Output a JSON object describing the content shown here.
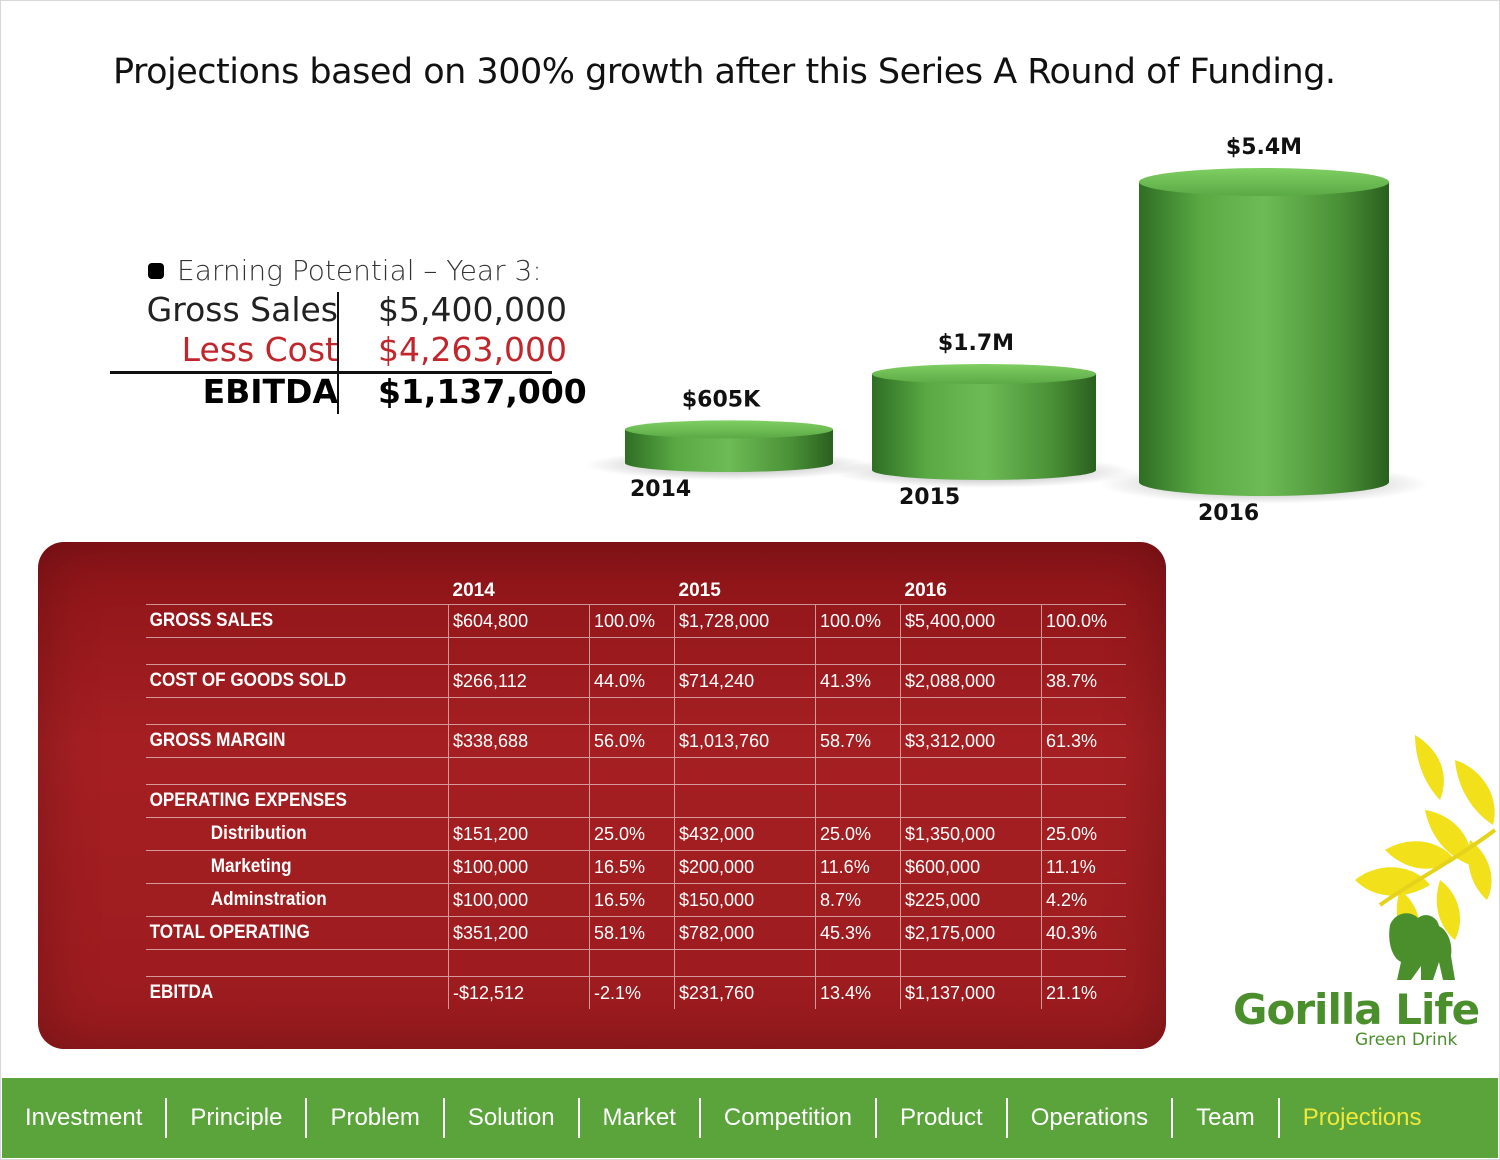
{
  "headline": "Projections based on 300% growth after this Series A Round of Funding.",
  "earning": {
    "heading": "Earning Potential – Year 3:",
    "rows": [
      {
        "label": "Gross Sales",
        "value": "$5,400,000"
      },
      {
        "label": "Less Cost",
        "value": "$4,263,000"
      },
      {
        "label": "EBITDA",
        "value": "$1,137,000"
      }
    ]
  },
  "chart_data": {
    "type": "bar",
    "categories": [
      "2014",
      "2015",
      "2016"
    ],
    "values": [
      0.605,
      1.728,
      5.4
    ],
    "value_labels": [
      "$605K",
      "$1.7M",
      "$5.4M"
    ],
    "title": "",
    "xlabel": "",
    "ylabel": "",
    "ylim": [
      0,
      5.4
    ],
    "grid": false,
    "color": "#4e9a38"
  },
  "table": {
    "years": [
      "2014",
      "2015",
      "2016"
    ],
    "rows": [
      {
        "label": "GROSS SALES",
        "cells": [
          "$604,800",
          "100.0%",
          "$1,728,000",
          "100.0%",
          "$5,400,000",
          "100.0%"
        ]
      },
      {
        "label": "COST OF GOODS SOLD",
        "cells": [
          "$266,112",
          "44.0%",
          "$714,240",
          "41.3%",
          "$2,088,000",
          "38.7%"
        ]
      },
      {
        "label": "GROSS MARGIN",
        "cells": [
          "$338,688",
          "56.0%",
          "$1,013,760",
          "58.7%",
          "$3,312,000",
          "61.3%"
        ]
      },
      {
        "label": "OPERATING EXPENSES",
        "cells": [
          "",
          "",
          "",
          "",
          "",
          ""
        ]
      },
      {
        "label": "Distribution",
        "cells": [
          "$151,200",
          "25.0%",
          "$432,000",
          "25.0%",
          "$1,350,000",
          "25.0%"
        ]
      },
      {
        "label": "Marketing",
        "cells": [
          "$100,000",
          "16.5%",
          "$200,000",
          "11.6%",
          "$600,000",
          "11.1%"
        ]
      },
      {
        "label": "Adminstration",
        "cells": [
          "$100,000",
          "16.5%",
          "$150,000",
          "8.7%",
          "$225,000",
          "4.2%"
        ]
      },
      {
        "label": "TOTAL OPERATING",
        "cells": [
          "$351,200",
          "58.1%",
          "$782,000",
          "45.3%",
          "$2,175,000",
          "40.3%"
        ]
      },
      {
        "label": "EBITDA",
        "cells": [
          "-$12,512",
          "-2.1%",
          "$231,760",
          "13.4%",
          "$1,137,000",
          "21.1%"
        ]
      }
    ]
  },
  "logo": {
    "brand": "Gorilla Life",
    "tagline": "Green Drink"
  },
  "nav": {
    "items": [
      "Investment",
      "Principle",
      "Problem",
      "Solution",
      "Market",
      "Competition",
      "Product",
      "Operations",
      "Team",
      "Projections"
    ],
    "active": "Projections"
  },
  "colors": {
    "nav_bg": "#5aa43b",
    "panel": "#9b1b1e",
    "bar": "#4e9a38",
    "less_cost": "#c0262c",
    "nav_active": "#f0e83a"
  }
}
